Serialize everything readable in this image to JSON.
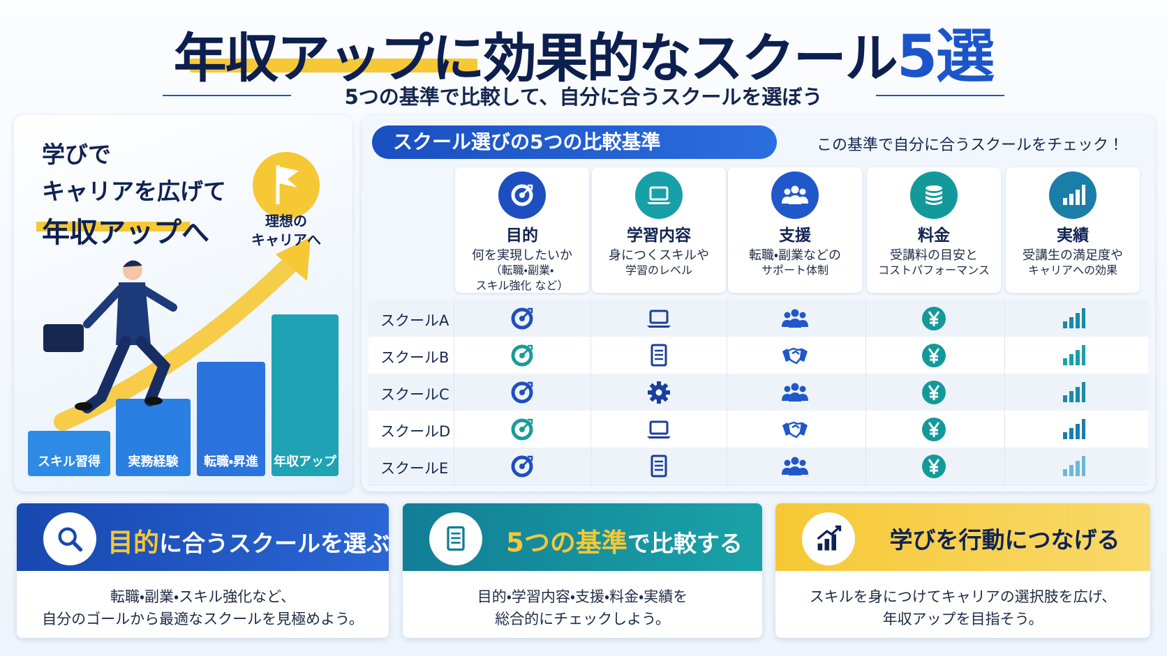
{
  "header": {
    "title": "年収アップに効果的なスクール",
    "title_highlight": "5選",
    "subtitle": "5つの基準で比較して、自分に合うスクールを選ぼう"
  },
  "hero": {
    "lines": [
      "学びで",
      "キャリアを広げて",
      "年収アップへ"
    ],
    "goal": [
      "理想の",
      "キャリアへ"
    ],
    "steps": [
      "スキル習得",
      "実務経験",
      "転職・昇進",
      "年収アップ"
    ]
  },
  "criteria": {
    "title": "スクール選びの5つの比較基準",
    "note": "この基準で自分に合うスクールをチェック！",
    "columns": [
      {
        "name": "目的",
        "description": [
          "何を実現したいか",
          "（転職・副業・",
          "スキル強化 など）"
        ]
      },
      {
        "name": "学習内容",
        "description": [
          "身につくスキルや",
          "学習のレベル"
        ]
      },
      {
        "name": "支援",
        "description": [
          "転職・副業などの",
          "サポート体制"
        ]
      },
      {
        "name": "料金",
        "description": [
          "受講料の目安と",
          "コストパフォーマンス"
        ]
      },
      {
        "name": "実績",
        "description": [
          "受講生の満足度や",
          "キャリアへの効果"
        ]
      }
    ]
  },
  "table": {
    "rows": [
      "スクールA",
      "スクールB",
      "スクールC",
      "スクールD",
      "スクールE"
    ]
  },
  "cards": [
    {
      "title": [
        "目的",
        "に合うスクールを選ぶ"
      ],
      "body": [
        "転職・副業・スキル強化など、",
        "自分のゴールから最適なスクールを見極めよう。"
      ]
    },
    {
      "title": [
        "5つの基準",
        "で比較する"
      ],
      "body": [
        "目的・学習内容・支援・料金・実績を",
        "総合的にチェックしよう。"
      ]
    },
    {
      "title": [
        "学びを行動につなげる"
      ],
      "body": [
        "スキルを身につけてキャリアの選択肢を広げ、",
        "年収アップを目指そう。"
      ]
    }
  ]
}
